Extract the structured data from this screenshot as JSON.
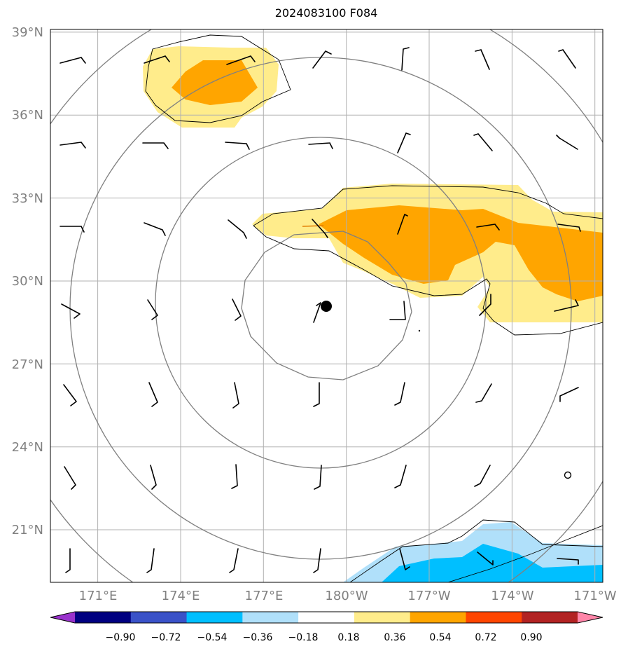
{
  "title": "2024083100 F084",
  "map": {
    "lat_labels": [
      "39°N",
      "36°N",
      "33°N",
      "30°N",
      "27°N",
      "24°N",
      "21°N"
    ],
    "lon_labels": [
      "171°E",
      "174°E",
      "177°E",
      "180°W",
      "177°W",
      "174°W",
      "171°W"
    ],
    "extent": {
      "lon_min_east": 169.3,
      "lon_max_east": 189.3,
      "lat_min": 19.1,
      "lat_max": 39.1
    },
    "tick_label_color": "#808080",
    "gridline_color": "#b0b0b0"
  },
  "colorbar": {
    "tick_labels": [
      "−0.90",
      "−0.72",
      "−0.54",
      "−0.36",
      "−0.18",
      "0.18",
      "0.36",
      "0.54",
      "0.72",
      "0.90"
    ],
    "colors": [
      "#9932cc",
      "#000080",
      "#3a52c8",
      "#00bfff",
      "#b0e0fa",
      "#ffffff",
      "#ffec8b",
      "#ffa500",
      "#ff4500",
      "#b22222",
      "#ff85a8"
    ]
  },
  "colors": {
    "positive_light": "#ffec8b",
    "positive_mid": "#ffa500",
    "negative_light": "#b0e0fa",
    "negative_mid": "#00bfff",
    "contour_thin": "#000000",
    "contour_ring": "#808080",
    "storm_center": "#000000"
  }
}
